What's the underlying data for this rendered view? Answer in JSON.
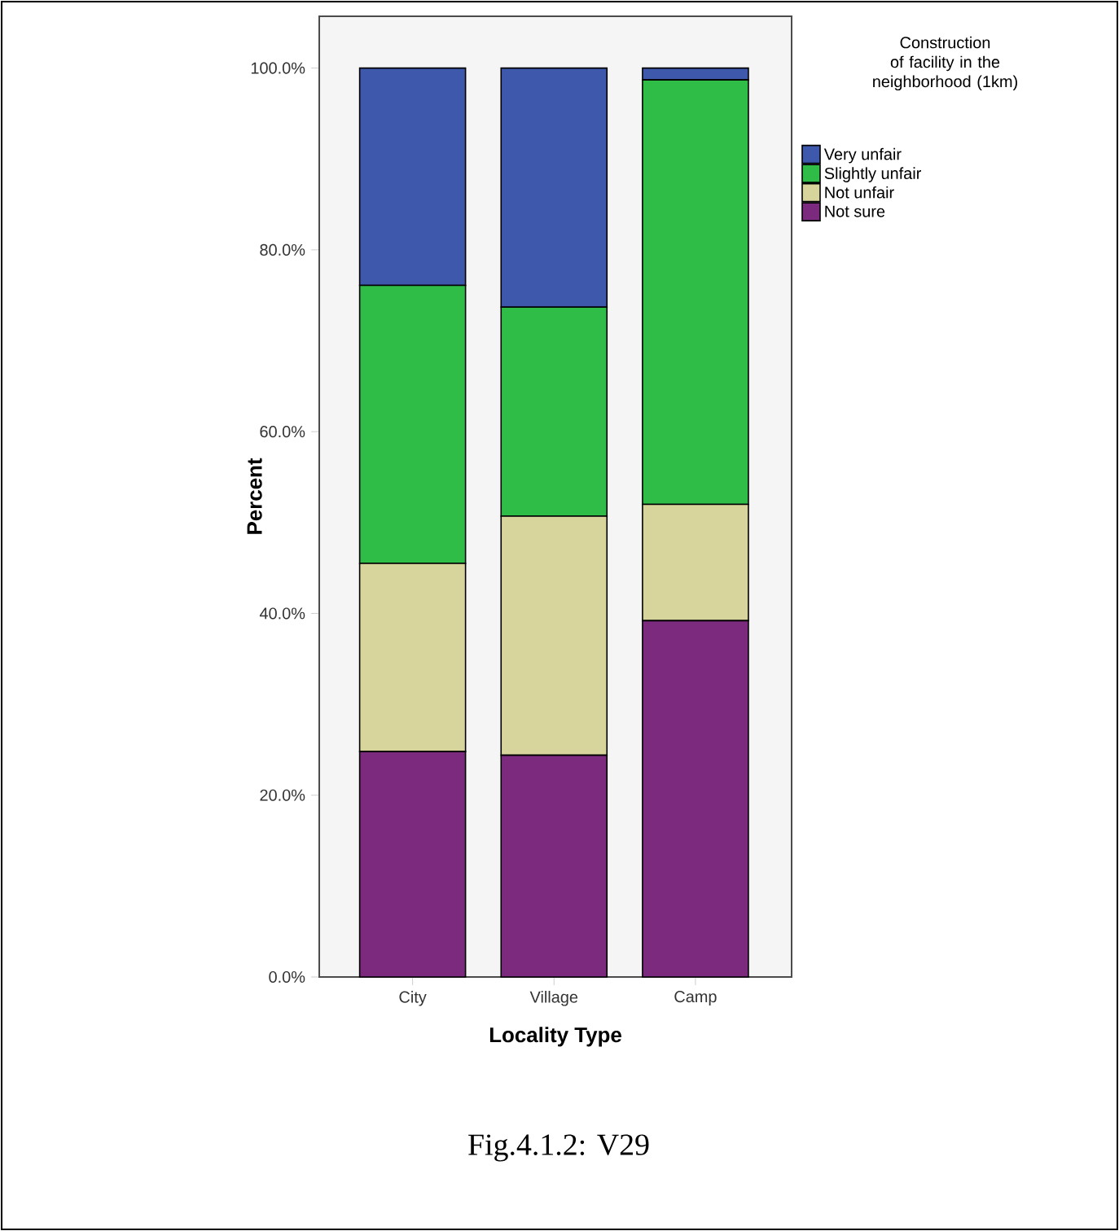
{
  "chart_data": {
    "type": "bar",
    "stacked": true,
    "xlabel": "Locality Type",
    "ylabel": "Percent",
    "legend_title": "Construction of facility in the neighborhood (1km)",
    "legend": "right",
    "categories": [
      "City",
      "Village",
      "Camp"
    ],
    "series": [
      {
        "name": "Not sure",
        "color": "#7b2a7e",
        "values": [
          24.8,
          24.4,
          39.2
        ]
      },
      {
        "name": "Not unfair",
        "color": "#d8d59c",
        "values": [
          20.7,
          26.3,
          12.8
        ]
      },
      {
        "name": "Slightly unfair",
        "color": "#2fbd48",
        "values": [
          30.6,
          23.0,
          46.7
        ]
      },
      {
        "name": "Very unfair",
        "color": "#3e58ac",
        "values": [
          23.9,
          26.3,
          1.3
        ]
      }
    ],
    "ylim": [
      0,
      105.7
    ],
    "yticks": [
      {
        "value": 0,
        "label": "0.0%"
      },
      {
        "value": 20,
        "label": "20.0%"
      },
      {
        "value": 40,
        "label": "40.0%"
      },
      {
        "value": 60,
        "label": "60.0%"
      },
      {
        "value": 80,
        "label": "80.0%"
      },
      {
        "value": 100,
        "label": "100.0%"
      }
    ],
    "annotations": [
      "Fig.4.1.2: V29"
    ]
  }
}
